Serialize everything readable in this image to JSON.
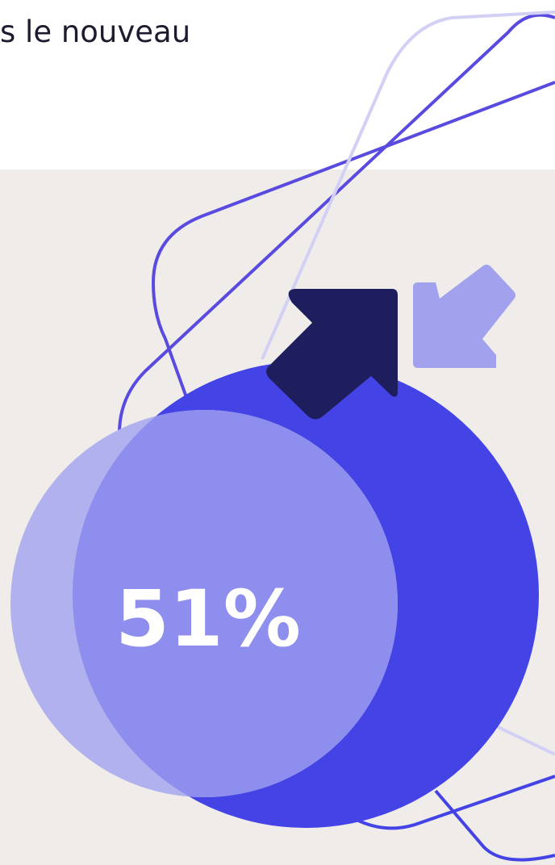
{
  "header": {
    "text": "s le nouveau"
  },
  "stat": {
    "label": "51%"
  }
}
